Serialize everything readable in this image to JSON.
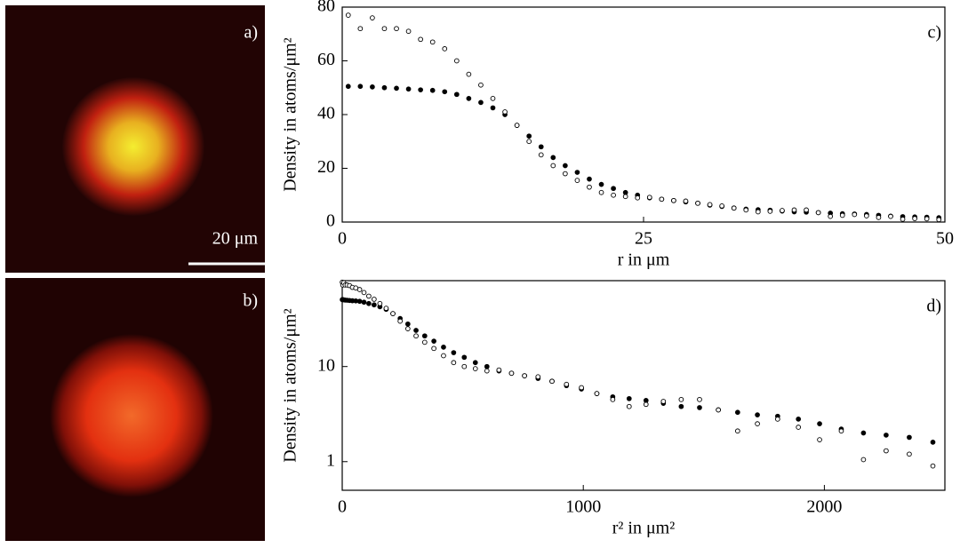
{
  "images": [
    {
      "label": "a)",
      "scale_bar": "20 μm"
    },
    {
      "label": "b)"
    }
  ],
  "chart_data": [
    {
      "type": "scatter",
      "panel": "c)",
      "x_label": "r in μm",
      "y_label": "Density in atoms/μm²",
      "xscale": "linear",
      "yscale": "linear",
      "xlim": [
        0,
        50
      ],
      "xticks": [
        0,
        25,
        50
      ],
      "ylim": [
        0,
        80
      ],
      "yticks": [
        0,
        20,
        40,
        60,
        80
      ],
      "x": [
        0.5,
        1.5,
        2.5,
        3.5,
        4.5,
        5.5,
        6.5,
        7.5,
        8.5,
        9.5,
        10.5,
        11.5,
        12.5,
        13.5,
        14.5,
        15.5,
        16.5,
        17.5,
        18.5,
        19.5,
        20.5,
        21.5,
        22.5,
        23.5,
        24.5,
        25.5,
        26.5,
        27.5,
        28.5,
        29.5,
        30.5,
        31.5,
        32.5,
        33.5,
        34.5,
        35.5,
        36.5,
        37.5,
        38.5,
        39.5,
        40.5,
        41.5,
        42.5,
        43.5,
        44.5,
        45.5,
        46.5,
        47.5,
        48.5,
        49.5
      ],
      "series": [
        {
          "color": "#000000",
          "marker": "filled",
          "values": [
            50.5,
            50.5,
            50.3,
            50,
            49.8,
            49.5,
            49.2,
            49,
            48.5,
            47.5,
            46,
            44.5,
            42.5,
            40,
            36,
            32,
            28,
            24,
            21,
            18.5,
            16,
            14,
            12.5,
            11,
            10,
            9,
            8.5,
            8,
            7.5,
            7,
            6.3,
            5.8,
            5.2,
            4.8,
            4.6,
            4.4,
            4.1,
            3.8,
            3.7,
            3.5,
            3.3,
            3.1,
            3,
            2.8,
            2.5,
            2.2,
            2,
            1.9,
            1.8,
            1.6
          ]
        },
        {
          "color": "#000000",
          "marker": "open",
          "values": [
            77,
            72,
            76,
            72,
            72,
            71,
            68,
            67,
            64.5,
            60,
            55,
            51,
            46,
            41,
            36,
            30,
            25,
            21,
            18,
            15.5,
            13,
            11,
            10,
            9.5,
            9,
            9.2,
            8.5,
            8,
            7.8,
            7,
            6.5,
            6,
            5.2,
            4.5,
            3.8,
            4,
            4.3,
            4.5,
            4.5,
            3.5,
            2.1,
            2.5,
            2.8,
            2.3,
            1.7,
            2.1,
            1.05,
            1.3,
            1.2,
            0.9
          ]
        }
      ]
    },
    {
      "type": "scatter",
      "panel": "d)",
      "x_label": "r² in μm²",
      "y_label": "Density in atoms/μm²",
      "xscale": "linear",
      "yscale": "log",
      "xlim": [
        0,
        2500
      ],
      "xticks": [
        0,
        1000,
        2000
      ],
      "ylim": [
        0.5,
        80
      ],
      "yticks": [
        1,
        10
      ],
      "x": [
        0.25,
        2.25,
        6.25,
        12.25,
        20.25,
        30.25,
        42.25,
        56.25,
        72.25,
        90.25,
        110.25,
        132.25,
        156.25,
        182.25,
        210.25,
        240.25,
        272.25,
        306.25,
        342.25,
        380.25,
        420.25,
        462.25,
        506.25,
        552.25,
        600.25,
        650.25,
        702.25,
        756.25,
        812.25,
        870.25,
        930.25,
        992.25,
        1056.25,
        1122.25,
        1190.25,
        1260.25,
        1332.25,
        1406.25,
        1482.25,
        1560.25,
        1640.25,
        1722.25,
        1806.25,
        1892.25,
        1980.25,
        2070.25,
        2162.25,
        2256.25,
        2352.25,
        2450.25
      ],
      "series": [
        {
          "color": "#000000",
          "marker": "filled",
          "values": [
            50.5,
            50.5,
            50.3,
            50,
            49.8,
            49.5,
            49.2,
            49,
            48.5,
            47.5,
            46,
            44.5,
            42.5,
            40,
            36,
            32,
            28,
            24,
            21,
            18.5,
            16,
            14,
            12.5,
            11,
            10,
            9,
            8.5,
            8,
            7.5,
            7,
            6.3,
            5.8,
            5.2,
            4.8,
            4.6,
            4.4,
            4.1,
            3.8,
            3.7,
            3.5,
            3.3,
            3.1,
            3,
            2.8,
            2.5,
            2.2,
            2,
            1.9,
            1.8,
            1.6
          ]
        },
        {
          "color": "#000000",
          "marker": "open",
          "values": [
            77,
            72,
            76,
            72,
            72,
            71,
            68,
            67,
            64.5,
            60,
            55,
            51,
            46,
            41,
            36,
            30,
            25,
            21,
            18,
            15.5,
            13,
            11,
            10,
            9.5,
            9,
            9.2,
            8.5,
            8,
            7.8,
            7,
            6.5,
            6,
            5.2,
            4.5,
            3.8,
            4,
            4.3,
            4.5,
            4.5,
            3.5,
            2.1,
            2.5,
            2.8,
            2.3,
            1.7,
            2.1,
            1.05,
            1.3,
            1.2,
            0.9
          ]
        }
      ]
    }
  ]
}
